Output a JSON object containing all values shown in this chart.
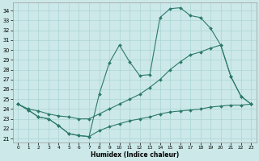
{
  "xlabel": "Humidex (Indice chaleur)",
  "background_color": "#cce8e8",
  "grid_color": "#aad4d4",
  "line_color": "#2d7a6a",
  "xlim": [
    -0.5,
    23.5
  ],
  "ylim": [
    20.6,
    34.8
  ],
  "yticks": [
    21,
    22,
    23,
    24,
    25,
    26,
    27,
    28,
    29,
    30,
    31,
    32,
    33,
    34
  ],
  "xticks": [
    0,
    1,
    2,
    3,
    4,
    5,
    6,
    7,
    8,
    9,
    10,
    11,
    12,
    13,
    14,
    15,
    16,
    17,
    18,
    19,
    20,
    21,
    22,
    23
  ],
  "curve1_x": [
    0,
    1,
    2,
    3,
    4,
    5,
    6,
    7,
    8,
    9,
    10,
    11,
    12,
    13,
    14,
    15,
    16,
    17,
    18,
    19,
    20,
    21,
    22,
    23
  ],
  "curve1_y": [
    24.5,
    23.9,
    23.2,
    23.0,
    22.3,
    21.5,
    21.3,
    21.2,
    21.8,
    22.2,
    22.5,
    22.8,
    23.0,
    23.2,
    23.5,
    23.7,
    23.8,
    23.9,
    24.0,
    24.2,
    24.3,
    24.4,
    24.4,
    24.5
  ],
  "curve2_x": [
    0,
    1,
    2,
    3,
    4,
    5,
    6,
    7,
    8,
    9,
    10,
    11,
    12,
    13,
    14,
    15,
    16,
    17,
    18,
    19,
    20,
    21,
    22,
    23
  ],
  "curve2_y": [
    24.5,
    23.9,
    23.2,
    23.0,
    22.3,
    21.5,
    21.3,
    21.2,
    25.5,
    28.7,
    30.5,
    28.8,
    27.4,
    27.5,
    33.3,
    34.2,
    34.3,
    33.5,
    33.3,
    32.2,
    30.5,
    27.3,
    25.3,
    24.5
  ],
  "curve3_x": [
    0,
    1,
    2,
    3,
    4,
    5,
    6,
    7,
    8,
    9,
    10,
    11,
    12,
    13,
    14,
    15,
    16,
    17,
    18,
    19,
    20,
    21,
    22,
    23
  ],
  "curve3_y": [
    24.5,
    24.0,
    23.8,
    23.5,
    23.3,
    23.2,
    23.0,
    23.0,
    23.5,
    24.0,
    24.5,
    25.0,
    25.5,
    26.2,
    27.0,
    28.0,
    28.8,
    29.5,
    29.8,
    30.2,
    30.5,
    27.3,
    25.3,
    24.5
  ]
}
